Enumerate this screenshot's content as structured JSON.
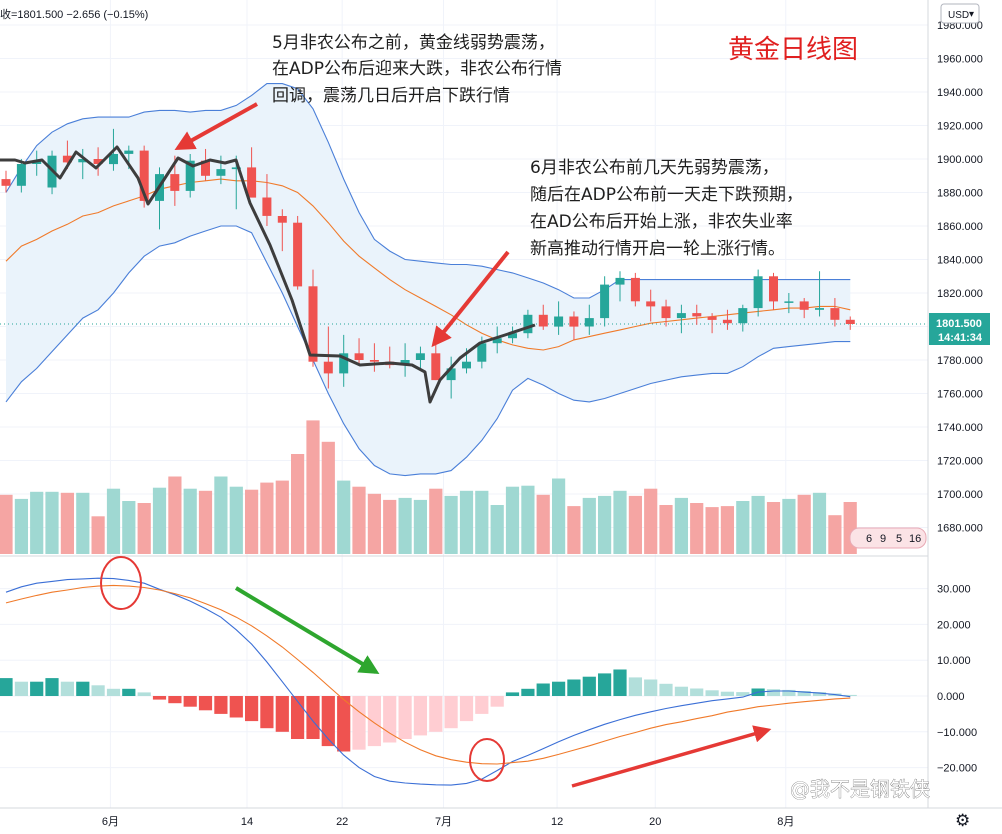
{
  "header": {
    "ohlc_text": "收=1801.500 −2.656 (−0.15%)",
    "currency": "USD",
    "title": "黄金日线图"
  },
  "annotations": {
    "note1": [
      "5月非农公布之前，黄金线弱势震荡，",
      "在ADP公布后迎来大跌，非农公布行情",
      "回调，震荡几日后开启下跌行情"
    ],
    "note2": [
      "6月非农公布前几天先弱势震荡，",
      "随后在ADP公布前一天走下跌预期，",
      "在AD公布后开始上涨，非农失业率",
      "新高推动行情开启一轮上涨行情。"
    ]
  },
  "price_label": {
    "price": "1801.500",
    "countdown": "14:41:34"
  },
  "watermark": "@我不是钢铁侠",
  "calendar_badge": [
    "6",
    "9",
    "5",
    "16"
  ],
  "colors": {
    "up": "#26a69a",
    "down": "#ef5350",
    "bb_band": "#4a7fd8",
    "bb_fill": "#eaf3fb",
    "bb_mid": "#f07a2a",
    "macd_line": "#3b6fd6",
    "signal_line": "#f07a2a",
    "annotation_arrow": "#e53935",
    "macd_arrow_green": "#2ea62e"
  },
  "chart_data": [
    {
      "type": "candlestick",
      "title": "黄金日线图",
      "y_ticks": [
        1680,
        1700,
        1720,
        1740,
        1760,
        1780,
        1800,
        1820,
        1840,
        1860,
        1880,
        1900,
        1920,
        1940,
        1960,
        1980
      ],
      "y_tick_labels": [
        "1680.000",
        "1700.000",
        "1720.000",
        "1740.000",
        "1760.000",
        "1780.000",
        "1800.000",
        "1820.000",
        "1840.000",
        "1860.000",
        "1880.000",
        "1900.000",
        "1920.000",
        "1940.000",
        "1960.000",
        "1980.000"
      ],
      "ylim": [
        1671,
        1990
      ],
      "x_tick_labels": [
        {
          "label": "6月",
          "bar": 6.8
        },
        {
          "label": "14",
          "bar": 15.7
        },
        {
          "label": "22",
          "bar": 21.9
        },
        {
          "label": "7月",
          "bar": 28.5
        },
        {
          "label": "12",
          "bar": 35.9
        },
        {
          "label": "20",
          "bar": 42.3
        },
        {
          "label": "8月",
          "bar": 50.8
        }
      ],
      "last_price": 1801.5,
      "candles": [
        [
          1888,
          1893,
          1880,
          1884
        ],
        [
          1884,
          1900,
          1880,
          1897
        ],
        [
          1897,
          1905,
          1890,
          1899
        ],
        [
          1883,
          1905,
          1879,
          1902
        ],
        [
          1902,
          1911,
          1894,
          1898
        ],
        [
          1898,
          1906,
          1888,
          1900
        ],
        [
          1900,
          1907,
          1890,
          1897
        ],
        [
          1897,
          1918,
          1893,
          1903
        ],
        [
          1903,
          1908,
          1894,
          1905
        ],
        [
          1905,
          1908,
          1871,
          1875
        ],
        [
          1875,
          1895,
          1858,
          1891
        ],
        [
          1891,
          1902,
          1872,
          1881
        ],
        [
          1881,
          1903,
          1877,
          1899
        ],
        [
          1899,
          1906,
          1887,
          1890
        ],
        [
          1890,
          1902,
          1885,
          1894
        ],
        [
          1894,
          1902,
          1870,
          1895
        ],
        [
          1895,
          1907,
          1880,
          1877
        ],
        [
          1877,
          1891,
          1860,
          1866
        ],
        [
          1866,
          1870,
          1845,
          1862
        ],
        [
          1862,
          1866,
          1822,
          1824
        ],
        [
          1824,
          1834,
          1776,
          1779
        ],
        [
          1779,
          1800,
          1763,
          1772
        ],
        [
          1772,
          1795,
          1764,
          1784
        ],
        [
          1784,
          1793,
          1778,
          1780
        ],
        [
          1780,
          1790,
          1773,
          1779
        ],
        [
          1779,
          1788,
          1775,
          1777
        ],
        [
          1777,
          1790,
          1770,
          1780
        ],
        [
          1780,
          1788,
          1774,
          1784
        ],
        [
          1784,
          1790,
          1768,
          1768
        ],
        [
          1768,
          1782,
          1757,
          1775
        ],
        [
          1775,
          1787,
          1772,
          1779
        ],
        [
          1779,
          1794,
          1775,
          1790
        ],
        [
          1790,
          1800,
          1784,
          1793
        ],
        [
          1793,
          1800,
          1790,
          1796
        ],
        [
          1796,
          1810,
          1793,
          1807
        ],
        [
          1807,
          1813,
          1798,
          1800
        ],
        [
          1800,
          1815,
          1795,
          1806
        ],
        [
          1806,
          1809,
          1792,
          1800
        ],
        [
          1800,
          1813,
          1795,
          1805
        ],
        [
          1805,
          1830,
          1800,
          1825
        ],
        [
          1825,
          1833,
          1815,
          1829
        ],
        [
          1829,
          1832,
          1812,
          1815
        ],
        [
          1815,
          1822,
          1803,
          1812
        ],
        [
          1812,
          1816,
          1800,
          1805
        ],
        [
          1805,
          1813,
          1796,
          1808
        ],
        [
          1808,
          1813,
          1801,
          1806
        ],
        [
          1806,
          1808,
          1796,
          1804
        ],
        [
          1804,
          1810,
          1798,
          1802
        ],
        [
          1802,
          1813,
          1797,
          1811
        ],
        [
          1811,
          1834,
          1806,
          1830
        ],
        [
          1830,
          1832,
          1810,
          1815
        ],
        [
          1815,
          1820,
          1808,
          1815
        ],
        [
          1815,
          1817,
          1805,
          1810
        ],
        [
          1810,
          1833,
          1806,
          1811
        ],
        [
          1811,
          1817,
          1800,
          1804
        ],
        [
          1804,
          1806,
          1798,
          1801.5
        ]
      ],
      "volume": [
        58,
        54,
        61,
        61,
        60,
        60,
        37,
        64,
        52,
        50,
        65,
        76,
        64,
        62,
        76,
        66,
        63,
        70,
        72,
        98,
        131,
        110,
        72,
        66,
        59,
        53,
        55,
        53,
        64,
        57,
        62,
        62,
        48,
        66,
        67,
        58,
        74,
        47,
        55,
        57,
        62,
        57,
        64,
        48,
        55,
        50,
        46,
        47,
        52,
        57,
        51,
        54,
        58,
        60,
        38,
        51
      ],
      "volume_unit_note": "relative bar heights",
      "bollinger": {
        "upper": [
          1880,
          1895,
          1908,
          1916,
          1921,
          1924,
          1925,
          1925,
          1925,
          1928,
          1929,
          1929,
          1928,
          1929,
          1929,
          1932,
          1938,
          1945,
          1945,
          1942,
          1930,
          1910,
          1888,
          1868,
          1852,
          1845,
          1840,
          1839,
          1838,
          1837,
          1837,
          1836,
          1834,
          1832,
          1829,
          1826,
          1822,
          1817,
          1817,
          1822,
          1828,
          1828,
          1828,
          1828,
          1828,
          1828,
          1828,
          1828,
          1828,
          1828,
          1828,
          1828,
          1828,
          1828,
          1828,
          1828
        ],
        "middle": [
          1839,
          1848,
          1852,
          1857,
          1861,
          1866,
          1868,
          1872,
          1875,
          1878,
          1882,
          1884,
          1886,
          1887,
          1888,
          1887,
          1887,
          1886,
          1884,
          1880,
          1872,
          1862,
          1851,
          1842,
          1835,
          1828,
          1822,
          1817,
          1812,
          1807,
          1801,
          1796,
          1792,
          1789,
          1787,
          1786,
          1788,
          1792,
          1794,
          1796,
          1798,
          1800,
          1802,
          1803,
          1804,
          1805,
          1806,
          1807,
          1808,
          1809,
          1810,
          1811,
          1811,
          1812,
          1812,
          1810
        ],
        "lower": [
          1755,
          1767,
          1775,
          1785,
          1795,
          1805,
          1810,
          1820,
          1832,
          1842,
          1848,
          1850,
          1854,
          1857,
          1860,
          1860,
          1856,
          1838,
          1820,
          1800,
          1780,
          1760,
          1742,
          1727,
          1717,
          1712,
          1711,
          1712,
          1712,
          1714,
          1722,
          1732,
          1745,
          1762,
          1769,
          1765,
          1760,
          1756,
          1755,
          1757,
          1760,
          1763,
          1766,
          1768,
          1770,
          1771,
          1772,
          1772,
          1776,
          1782,
          1787,
          1788,
          1789,
          1790,
          1791,
          1791
        ]
      }
    },
    {
      "type": "macd",
      "y_ticks": [
        30,
        20,
        10,
        0,
        -10,
        -20
      ],
      "y_tick_labels": [
        "30.000",
        "20.000",
        "10.000",
        "0.000",
        "−10.000",
        "−20.000"
      ],
      "ylim": [
        -28,
        40
      ],
      "macd": [
        29,
        30.5,
        31.5,
        32,
        32.5,
        32.7,
        32.9,
        32.8,
        32.3,
        31.5,
        29.8,
        28.3,
        26.5,
        24.4,
        22,
        18.5,
        14.5,
        9.5,
        4,
        -1.5,
        -7,
        -12,
        -16.5,
        -20,
        -22.5,
        -23.8,
        -24.3,
        -24.6,
        -24.8,
        -24.9,
        -24.4,
        -23.2,
        -20.8,
        -18.3,
        -16.6,
        -14.7,
        -12.8,
        -11,
        -9.4,
        -7.9,
        -6.6,
        -5.4,
        -4.4,
        -3.5,
        -2.7,
        -2,
        -1.3,
        -0.8,
        -0.3,
        1.1,
        1.4,
        1.4,
        1.1,
        0.8,
        0.4,
        -0.2
      ],
      "signal": [
        26,
        27.1,
        28.1,
        29,
        29.6,
        30.3,
        30.7,
        30.9,
        30.7,
        30.3,
        29.6,
        28.6,
        27.4,
        25.8,
        24.1,
        22,
        19.6,
        16.8,
        13.7,
        10.2,
        6.6,
        2.8,
        -1,
        -4.4,
        -7.5,
        -10.4,
        -12.9,
        -15,
        -16.7,
        -17.8,
        -18.5,
        -18.9,
        -19,
        -18.6,
        -18.2,
        -17.4,
        -16.3,
        -15.1,
        -13.9,
        -12.6,
        -11.3,
        -10.2,
        -9,
        -8,
        -7.2,
        -6.3,
        -5.5,
        -4.5,
        -3.8,
        -3,
        -2.5,
        -2,
        -1.6,
        -1.2,
        -0.8,
        -0.6
      ],
      "histogram": [
        5,
        4,
        4,
        5,
        4,
        4,
        3,
        2,
        2,
        1,
        -1,
        -2,
        -3,
        -4,
        -5,
        -6,
        -7,
        -9,
        -10,
        -12,
        -12,
        -14,
        -15.5,
        -15,
        -14,
        -13,
        -12,
        -11,
        -10,
        -9,
        -7,
        -5,
        -3,
        1,
        2,
        3.5,
        4,
        4.6,
        5.4,
        6.3,
        7.4,
        5.2,
        4.6,
        3.4,
        2.6,
        2.1,
        1.6,
        1.2,
        1.1,
        2.1,
        1.9,
        1.7,
        1.4,
        1.1,
        0.7,
        0.3
      ]
    }
  ]
}
